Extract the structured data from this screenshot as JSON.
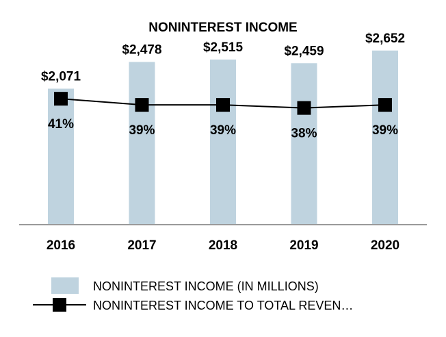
{
  "chart_data": {
    "type": "bar",
    "title": "NONINTEREST INCOME",
    "categories": [
      "2016",
      "2017",
      "2018",
      "2019",
      "2020"
    ],
    "series": [
      {
        "name": "NONINTEREST INCOME (IN MILLIONS)",
        "kind": "bar",
        "values": [
          2071,
          2478,
          2515,
          2459,
          2652
        ],
        "labels": [
          "$2,071",
          "$2,478",
          "$2,515",
          "$2,459",
          "$2,652"
        ],
        "color": "#bfd3df"
      },
      {
        "name": "NONINTEREST INCOME TO TOTAL REVEN…",
        "kind": "line",
        "values": [
          41,
          39,
          39,
          38,
          39
        ],
        "labels": [
          "41%",
          "39%",
          "39%",
          "38%",
          "39%"
        ],
        "color": "#000000",
        "marker": "square"
      }
    ],
    "xlabel": "",
    "ylabel": "",
    "ylim": [
      0,
      2900
    ],
    "line_ylim": [
      0,
      62
    ],
    "grid": false,
    "legend": "bottom"
  },
  "colors": {
    "bar": "#bfd3df",
    "line": "#000000",
    "axis": "#9a9a9a",
    "text": "#000000"
  }
}
